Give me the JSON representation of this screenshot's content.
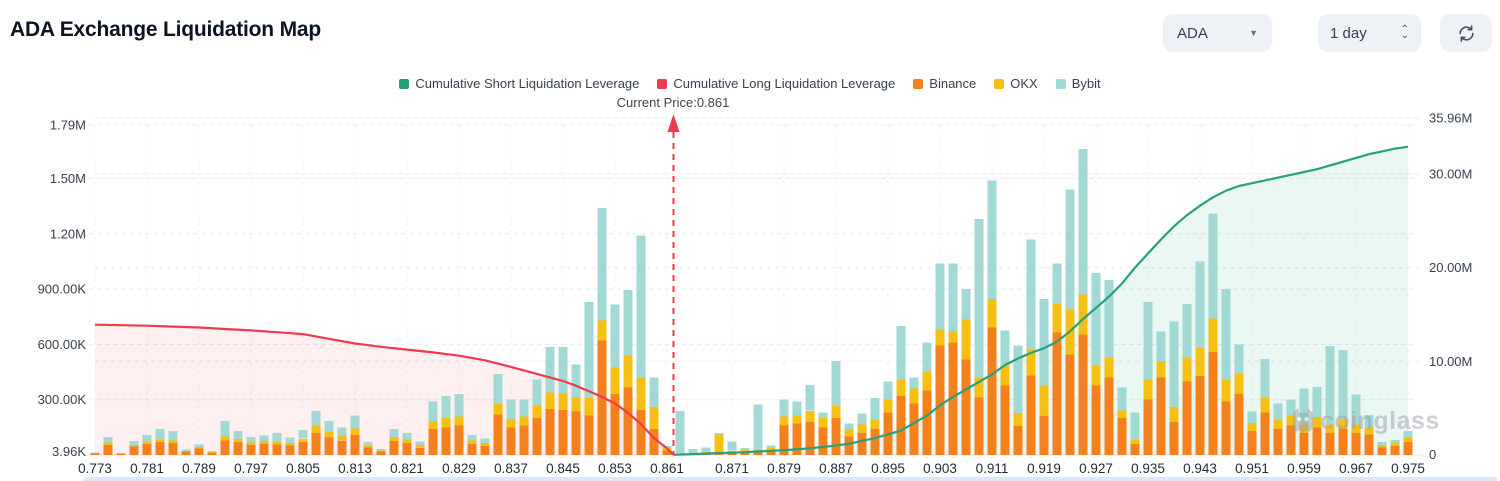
{
  "header": {
    "title": "ADA Exchange Liquidation Map"
  },
  "controls": {
    "symbol": "ADA",
    "symbol_caret_icon": "▼",
    "interval": "1 day",
    "spinner_up_icon": "⌃",
    "spinner_down_icon": "⌄",
    "refresh_icon": "sync-arrows"
  },
  "chart_data": {
    "type": "bar",
    "subtype": "stacked-bars-with-cumulative-lines",
    "title": "ADA Exchange Liquidation Map",
    "current_price": 0.861,
    "current_price_label": "Current Price:0.861",
    "watermark": "coinglass",
    "grid": "dashed-horizontal",
    "legend_position": "top-center",
    "legend": [
      {
        "label": "Cumulative Short Liquidation Leverage",
        "color": "#26a17b"
      },
      {
        "label": "Cumulative Long Liquidation Leverage",
        "color": "#ef3a4f"
      },
      {
        "label": "Binance",
        "color": "#f3811e"
      },
      {
        "label": "OKX",
        "color": "#f6c013"
      },
      {
        "label": "Bybit",
        "color": "#a2d9d4"
      }
    ],
    "left_axis": {
      "unit": "liquidation leverage",
      "min_label": "3.96K",
      "max": 1790,
      "ticks": [
        {
          "label": "1.79M",
          "value": 1790
        },
        {
          "label": "1.50M",
          "value": 1500
        },
        {
          "label": "1.20M",
          "value": 1200
        },
        {
          "label": "900.00K",
          "value": 900
        },
        {
          "label": "600.00K",
          "value": 600
        },
        {
          "label": "300.00K",
          "value": 300
        },
        {
          "label": "3.96K",
          "value": 3.96
        }
      ]
    },
    "right_axis": {
      "unit": "cumulative leverage",
      "max": 35.96,
      "ticks": [
        {
          "label": "35.96M",
          "value": 35.96
        },
        {
          "label": "30.00M",
          "value": 30
        },
        {
          "label": "20.00M",
          "value": 20
        },
        {
          "label": "10.00M",
          "value": 10
        },
        {
          "label": "0",
          "value": 0
        }
      ]
    },
    "x_axis": {
      "unit": "price",
      "ticks": [
        {
          "label": "0.773",
          "index": 0
        },
        {
          "label": "0.781",
          "index": 4
        },
        {
          "label": "0.789",
          "index": 8
        },
        {
          "label": "0.797",
          "index": 12
        },
        {
          "label": "0.805",
          "index": 16
        },
        {
          "label": "0.813",
          "index": 20
        },
        {
          "label": "0.821",
          "index": 24
        },
        {
          "label": "0.829",
          "index": 28
        },
        {
          "label": "0.837",
          "index": 32
        },
        {
          "label": "0.845",
          "index": 36
        },
        {
          "label": "0.853",
          "index": 40
        },
        {
          "label": "0.861",
          "index": 44
        },
        {
          "label": "0.871",
          "index": 49
        },
        {
          "label": "0.879",
          "index": 53
        },
        {
          "label": "0.887",
          "index": 57
        },
        {
          "label": "0.895",
          "index": 61
        },
        {
          "label": "0.903",
          "index": 65
        },
        {
          "label": "0.911",
          "index": 69
        },
        {
          "label": "0.919",
          "index": 73
        },
        {
          "label": "0.927",
          "index": 77
        },
        {
          "label": "0.935",
          "index": 81
        },
        {
          "label": "0.943",
          "index": 85
        },
        {
          "label": "0.951",
          "index": 89
        },
        {
          "label": "0.959",
          "index": 93
        },
        {
          "label": "0.967",
          "index": 97
        },
        {
          "label": "0.975",
          "index": 101
        }
      ]
    },
    "bars": {
      "series_order": [
        "Binance",
        "OKX",
        "Bybit"
      ],
      "unit": "K (left axis)",
      "values": [
        [
          8,
          2,
          3
        ],
        [
          55,
          12,
          30
        ],
        [
          6,
          2,
          2
        ],
        [
          45,
          10,
          22
        ],
        [
          60,
          14,
          35
        ],
        [
          70,
          15,
          55
        ],
        [
          65,
          14,
          50
        ],
        [
          18,
          5,
          8
        ],
        [
          35,
          8,
          14
        ],
        [
          12,
          4,
          6
        ],
        [
          80,
          20,
          85
        ],
        [
          70,
          16,
          45
        ],
        [
          55,
          14,
          28
        ],
        [
          60,
          15,
          32
        ],
        [
          58,
          16,
          45
        ],
        [
          52,
          14,
          30
        ],
        [
          70,
          18,
          48
        ],
        [
          120,
          40,
          80
        ],
        [
          95,
          30,
          60
        ],
        [
          80,
          25,
          45
        ],
        [
          110,
          35,
          70
        ],
        [
          40,
          12,
          18
        ],
        [
          18,
          6,
          8
        ],
        [
          75,
          22,
          45
        ],
        [
          65,
          20,
          35
        ],
        [
          42,
          12,
          20
        ],
        [
          140,
          45,
          105
        ],
        [
          150,
          50,
          120
        ],
        [
          160,
          50,
          120
        ],
        [
          60,
          18,
          30
        ],
        [
          50,
          15,
          25
        ],
        [
          220,
          60,
          160
        ],
        [
          150,
          45,
          105
        ],
        [
          160,
          50,
          90
        ],
        [
          200,
          70,
          140
        ],
        [
          250,
          90,
          245
        ],
        [
          245,
          85,
          255
        ],
        [
          235,
          80,
          175
        ],
        [
          215,
          95,
          520
        ],
        [
          620,
          110,
          610
        ],
        [
          330,
          145,
          340
        ],
        [
          365,
          175,
          355
        ],
        [
          245,
          175,
          770
        ],
        [
          140,
          120,
          160
        ],
        [
          25,
          15,
          10
        ],
        [
          5,
          3,
          230
        ],
        [
          8,
          4,
          20
        ],
        [
          10,
          5,
          25
        ],
        [
          10,
          100,
          8
        ],
        [
          15,
          8,
          50
        ],
        [
          18,
          8,
          12
        ],
        [
          20,
          10,
          245
        ],
        [
          25,
          12,
          15
        ],
        [
          160,
          50,
          90
        ],
        [
          170,
          45,
          75
        ],
        [
          180,
          60,
          140
        ],
        [
          150,
          50,
          30
        ],
        [
          200,
          65,
          245
        ],
        [
          100,
          40,
          30
        ],
        [
          120,
          45,
          60
        ],
        [
          140,
          50,
          120
        ],
        [
          230,
          70,
          100
        ],
        [
          320,
          90,
          290
        ],
        [
          280,
          80,
          60
        ],
        [
          350,
          100,
          160
        ],
        [
          594,
          87,
          359
        ],
        [
          611,
          60,
          369
        ],
        [
          518,
          218,
          164
        ],
        [
          311,
          109,
          860
        ],
        [
          692,
          153,
          645
        ],
        [
          376,
          109,
          191
        ],
        [
          158,
          71,
          365
        ],
        [
          430,
          142,
          598
        ],
        [
          212,
          164,
          469
        ],
        [
          665,
          153,
          222
        ],
        [
          545,
          245,
          650
        ],
        [
          654,
          218,
          788
        ],
        [
          376,
          109,
          502
        ],
        [
          420,
          109,
          419
        ],
        [
          202,
          40,
          123
        ],
        [
          60,
          25,
          145
        ],
        [
          300,
          110,
          420
        ],
        [
          420,
          90,
          160
        ],
        [
          180,
          80,
          465
        ],
        [
          400,
          130,
          290
        ],
        [
          430,
          150,
          470
        ],
        [
          560,
          180,
          570
        ],
        [
          290,
          120,
          490
        ],
        [
          330,
          110,
          160
        ],
        [
          130,
          45,
          60
        ],
        [
          230,
          80,
          210
        ],
        [
          140,
          50,
          90
        ],
        [
          160,
          55,
          85
        ],
        [
          120,
          45,
          195
        ],
        [
          150,
          55,
          165
        ],
        [
          120,
          45,
          425
        ],
        [
          140,
          55,
          375
        ],
        [
          120,
          45,
          162
        ],
        [
          110,
          40,
          68
        ],
        [
          40,
          15,
          16
        ],
        [
          50,
          18,
          14
        ],
        [
          70,
          25,
          35
        ]
      ]
    },
    "long_line": {
      "name": "Cumulative Long Liquidation Leverage",
      "axis": "right",
      "unit": "M",
      "points": [
        [
          0,
          13.9
        ],
        [
          2,
          13.85
        ],
        [
          4,
          13.8
        ],
        [
          6,
          13.7
        ],
        [
          8,
          13.6
        ],
        [
          10,
          13.45
        ],
        [
          12,
          13.3
        ],
        [
          14,
          13.1
        ],
        [
          16,
          12.9
        ],
        [
          18,
          12.4
        ],
        [
          20,
          11.9
        ],
        [
          22,
          11.55
        ],
        [
          24,
          11.25
        ],
        [
          26,
          10.95
        ],
        [
          28,
          10.6
        ],
        [
          30,
          10.1
        ],
        [
          32,
          9.4
        ],
        [
          34,
          8.65
        ],
        [
          36,
          7.9
        ],
        [
          37,
          7.4
        ],
        [
          38,
          6.8
        ],
        [
          39,
          6.2
        ],
        [
          40,
          5.5
        ],
        [
          41,
          4.5
        ],
        [
          42,
          3.3
        ],
        [
          43,
          1.8
        ],
        [
          44,
          0.7
        ],
        [
          44.5,
          0.02
        ]
      ]
    },
    "short_line": {
      "name": "Cumulative Short Liquidation Leverage",
      "axis": "right",
      "unit": "M",
      "points": [
        [
          44.5,
          0.02
        ],
        [
          46,
          0.1
        ],
        [
          48,
          0.2
        ],
        [
          50,
          0.3
        ],
        [
          52,
          0.45
        ],
        [
          54,
          0.6
        ],
        [
          56,
          0.85
        ],
        [
          58,
          1.2
        ],
        [
          60,
          1.8
        ],
        [
          62,
          2.6
        ],
        [
          64,
          4.2
        ],
        [
          65,
          5.3
        ],
        [
          66,
          6.2
        ],
        [
          67,
          7.0
        ],
        [
          68,
          7.8
        ],
        [
          69,
          8.6
        ],
        [
          70,
          9.6
        ],
        [
          71,
          10.3
        ],
        [
          72,
          10.9
        ],
        [
          73,
          11.4
        ],
        [
          74,
          12.1
        ],
        [
          75,
          13.2
        ],
        [
          76,
          14.5
        ],
        [
          77,
          15.7
        ],
        [
          78,
          16.9
        ],
        [
          79,
          18.3
        ],
        [
          80,
          20.0
        ],
        [
          81,
          21.5
        ],
        [
          82,
          23.0
        ],
        [
          83,
          24.4
        ],
        [
          84,
          25.6
        ],
        [
          85,
          26.6
        ],
        [
          86,
          27.5
        ],
        [
          87,
          28.2
        ],
        [
          88,
          28.7
        ],
        [
          89,
          29.0
        ],
        [
          90,
          29.3
        ],
        [
          91,
          29.6
        ],
        [
          92,
          29.9
        ],
        [
          93,
          30.2
        ],
        [
          94,
          30.5
        ],
        [
          95,
          30.9
        ],
        [
          96,
          31.3
        ],
        [
          97,
          31.7
        ],
        [
          98,
          32.1
        ],
        [
          99,
          32.4
        ],
        [
          100,
          32.7
        ],
        [
          101,
          32.9
        ]
      ]
    },
    "colors": {
      "binance": "#f3811e",
      "okx": "#f6c013",
      "bybit": "#a2d9d4",
      "short_line": "#26a17b",
      "long_line": "#ef3a4f",
      "long_fill": "rgba(239,58,79,0.08)",
      "short_fill": "rgba(38,161,123,0.09)",
      "grid": "#e7e9ee",
      "axis_text": "#374151",
      "scroll_strip": "#d9e8fa"
    }
  }
}
